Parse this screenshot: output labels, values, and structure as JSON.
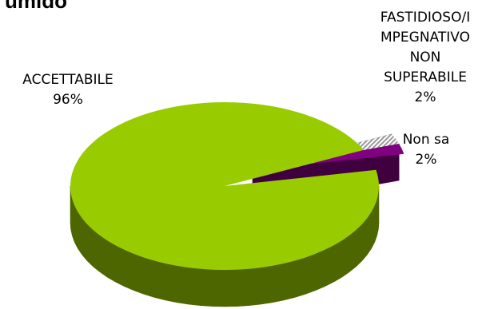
{
  "chart_data": {
    "type": "pie",
    "title": "umido",
    "slices": [
      {
        "label": "ACCETTABILE",
        "value": 96,
        "value_label": "96%",
        "color": "#99cc00",
        "side_color": "#4d6600"
      },
      {
        "label": "FASTIDIOSO/IMPEGNATIVO NON SUPERABILE",
        "label_lines": [
          "FASTIDIOSO/I",
          "MPEGNATIVO",
          "NON",
          "SUPERABILE"
        ],
        "value": 2,
        "value_label": "2%",
        "color": "#800080",
        "side_color": "#400040"
      },
      {
        "label": "Non sa",
        "value": 2,
        "value_label": "2%",
        "color": "#e8e8e8",
        "side_color": "#7f7f7f",
        "pattern": "diagonal-stripes"
      }
    ],
    "style": "3d-exploded"
  }
}
